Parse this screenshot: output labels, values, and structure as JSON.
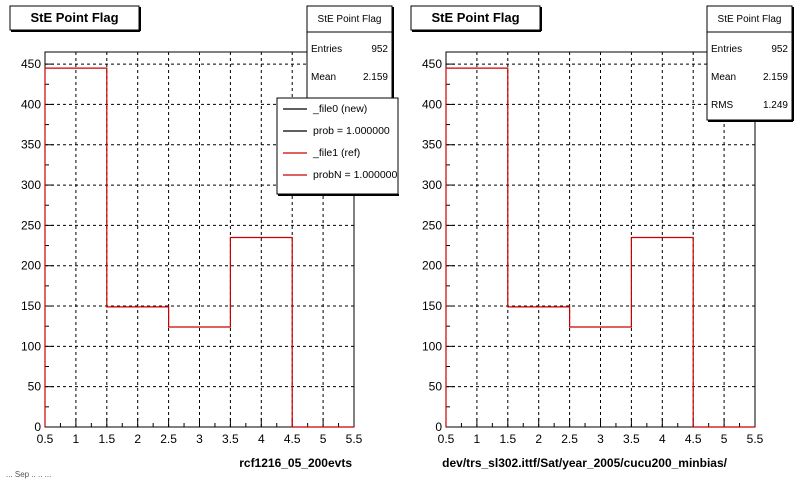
{
  "footer_stamp": "... Sep .. .. ...",
  "chart_data": [
    {
      "type": "bar",
      "title": "StE Point Flag",
      "xlabel": "rcf1216_05_200evts",
      "ylabel": "",
      "xlim": [
        0.5,
        5.5
      ],
      "ylim": [
        0,
        465
      ],
      "xticks": [
        "0.5",
        "1",
        "1.5",
        "2",
        "2.5",
        "3",
        "3.5",
        "4",
        "4.5",
        "5",
        "5.5"
      ],
      "yticks": [
        "0",
        "50",
        "100",
        "150",
        "200",
        "250",
        "300",
        "350",
        "400",
        "450"
      ],
      "grid": true,
      "bin_edges": [
        0.5,
        1.5,
        2.5,
        3.5,
        4.5,
        5.5
      ],
      "series": [
        {
          "name": "_file1 (ref)",
          "color": "#cc0000",
          "values": [
            445,
            149,
            124,
            235,
            0
          ]
        }
      ],
      "stats": {
        "title": "StE Point Flag",
        "rows": [
          {
            "label": "Entries",
            "value": "952"
          },
          {
            "label": "Mean",
            "value": "2.159"
          }
        ]
      },
      "legend": {
        "position": "top-right",
        "entries": [
          {
            "text": "_file0 (new)",
            "color": "#000000"
          },
          {
            "text": "prob = 1.000000",
            "color": "#000000"
          },
          {
            "text": "_file1 (ref)",
            "color": "#cc0000"
          },
          {
            "text": "probN = 1.000000",
            "color": "#cc0000"
          }
        ]
      }
    },
    {
      "type": "bar",
      "title": "StE Point Flag",
      "xlabel": "dev/trs_sl302.ittf/Sat/year_2005/cucu200_minbias/",
      "ylabel": "",
      "xlim": [
        0.5,
        5.5
      ],
      "ylim": [
        0,
        465
      ],
      "xticks": [
        "0.5",
        "1",
        "1.5",
        "2",
        "2.5",
        "3",
        "3.5",
        "4",
        "4.5",
        "5",
        "5.5"
      ],
      "yticks": [
        "0",
        "50",
        "100",
        "150",
        "200",
        "250",
        "300",
        "350",
        "400",
        "450"
      ],
      "grid": true,
      "bin_edges": [
        0.5,
        1.5,
        2.5,
        3.5,
        4.5,
        5.5
      ],
      "series": [
        {
          "name": "",
          "color": "#cc0000",
          "values": [
            445,
            149,
            124,
            235,
            0
          ]
        }
      ],
      "stats": {
        "title": "StE Point Flag",
        "rows": [
          {
            "label": "Entries",
            "value": "952"
          },
          {
            "label": "Mean",
            "value": "2.159"
          },
          {
            "label": "RMS",
            "value": "1.249"
          }
        ]
      },
      "legend": null
    }
  ]
}
